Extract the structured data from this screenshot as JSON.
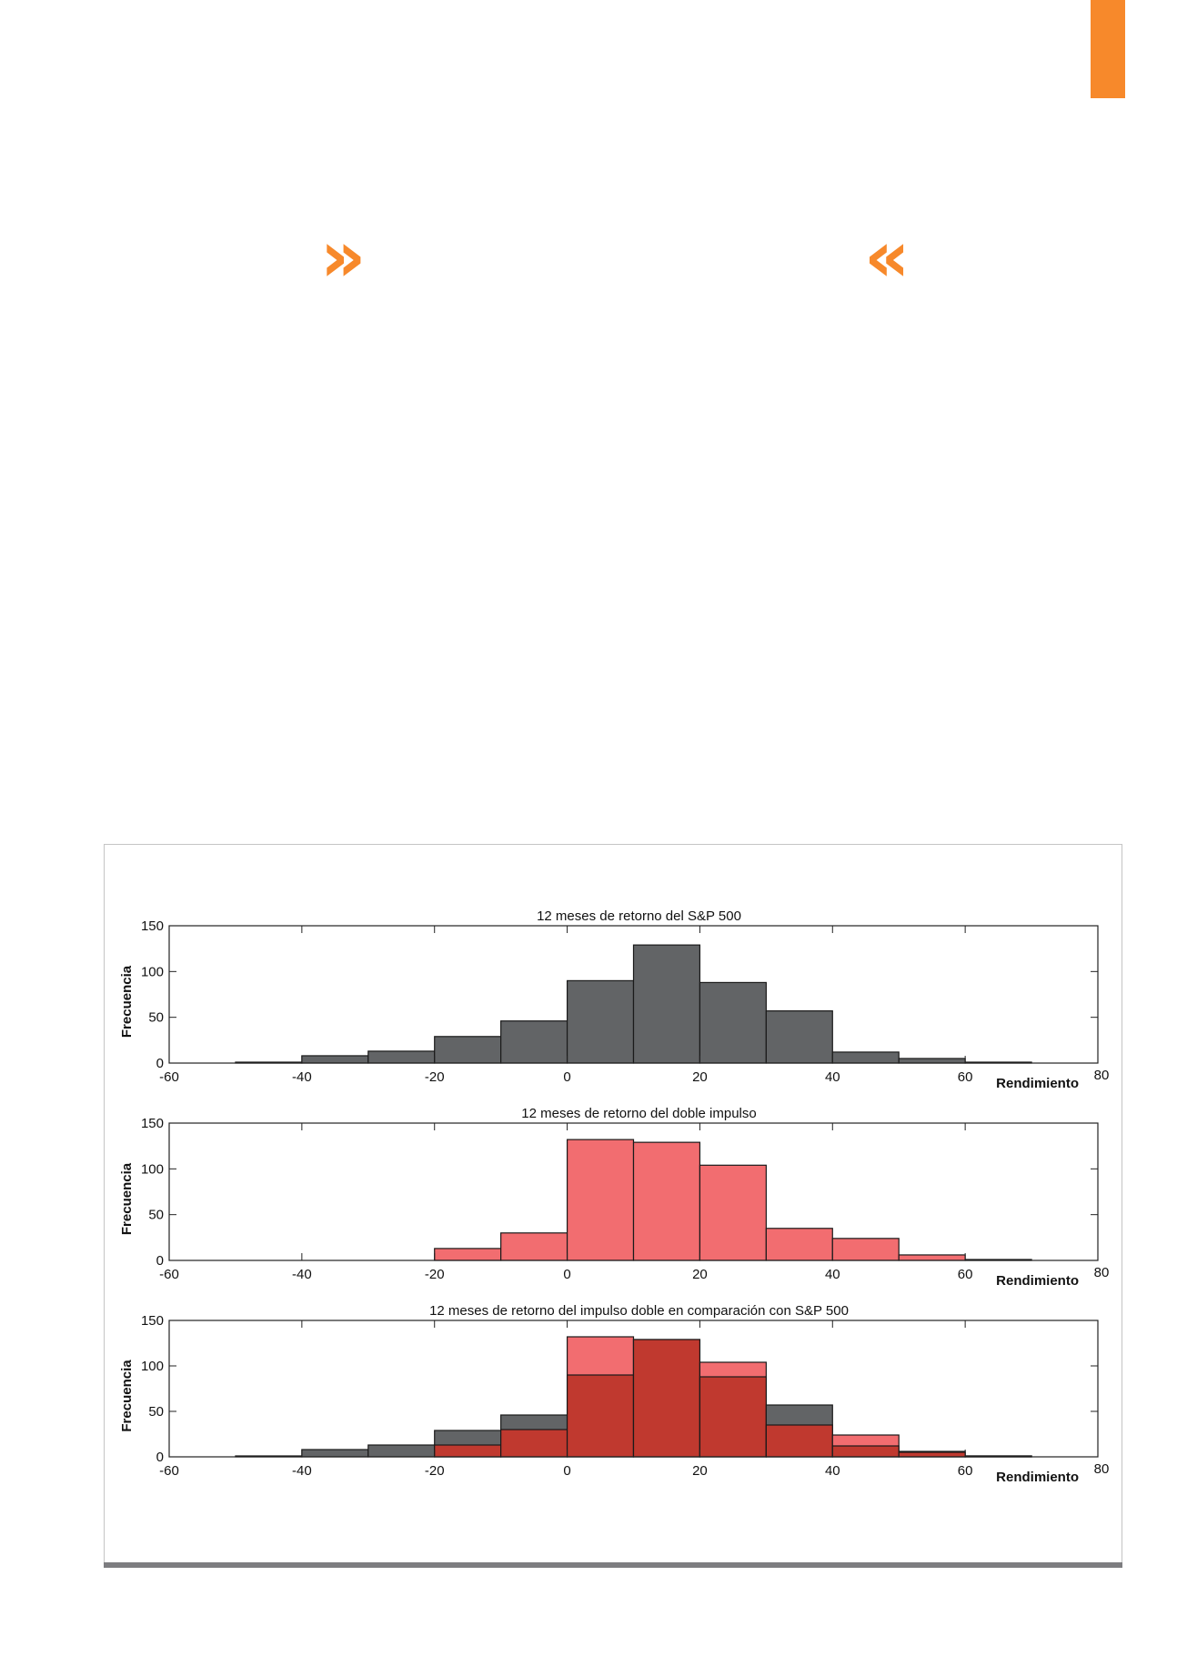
{
  "decor": {
    "accent_color": "#f7892b",
    "quote_open": "»",
    "quote_close": "«"
  },
  "colors": {
    "sp500": "#626466",
    "doble": "#f26d70",
    "overlap": "#c0392f",
    "edge": "#1a1a1a"
  },
  "chart_data": [
    {
      "type": "bar",
      "title": "12 meses de retorno del S&P 500",
      "xlabel": "Rendimiento",
      "ylabel": "Frecuencia",
      "xlim": [
        -60,
        80
      ],
      "ylim": [
        0,
        150
      ],
      "xticks": [
        "-60",
        "-40",
        "-20",
        "0",
        "20",
        "40",
        "60",
        "80"
      ],
      "yticks": [
        "0",
        "50",
        "100",
        "150"
      ],
      "bin_edges": [
        -50,
        -40,
        -30,
        -20,
        -10,
        0,
        10,
        20,
        30,
        40,
        50,
        60,
        70
      ],
      "series": [
        {
          "name": "S&P 500",
          "color_key": "sp500",
          "values": [
            1,
            8,
            13,
            29,
            46,
            90,
            129,
            88,
            57,
            12,
            5,
            1
          ]
        }
      ]
    },
    {
      "type": "bar",
      "title": "12 meses de retorno del doble impulso",
      "xlabel": "Rendimiento",
      "ylabel": "Frecuencia",
      "xlim": [
        -60,
        80
      ],
      "ylim": [
        0,
        150
      ],
      "xticks": [
        "-60",
        "-40",
        "-20",
        "0",
        "20",
        "40",
        "60",
        "80"
      ],
      "yticks": [
        "0",
        "50",
        "100",
        "150"
      ],
      "bin_edges": [
        -50,
        -40,
        -30,
        -20,
        -10,
        0,
        10,
        20,
        30,
        40,
        50,
        60,
        70
      ],
      "series": [
        {
          "name": "Doble impulso",
          "color_key": "doble",
          "values": [
            0,
            0,
            0,
            13,
            30,
            132,
            129,
            104,
            35,
            24,
            6,
            1
          ]
        }
      ]
    },
    {
      "type": "bar",
      "title": "12 meses de retorno del impulso doble en comparación con  S&P 500",
      "xlabel": "Rendimiento",
      "ylabel": "Frecuencia",
      "xlim": [
        -60,
        80
      ],
      "ylim": [
        0,
        150
      ],
      "xticks": [
        "-60",
        "-40",
        "-20",
        "0",
        "20",
        "40",
        "60",
        "80"
      ],
      "yticks": [
        "0",
        "50",
        "100",
        "150"
      ],
      "bin_edges": [
        -50,
        -40,
        -30,
        -20,
        -10,
        0,
        10,
        20,
        30,
        40,
        50,
        60,
        70
      ],
      "series": [
        {
          "name": "S&P 500",
          "color_key": "sp500",
          "values": [
            1,
            8,
            13,
            29,
            46,
            90,
            129,
            88,
            57,
            12,
            5,
            1
          ]
        },
        {
          "name": "Doble impulso",
          "color_key": "doble",
          "values": [
            0,
            0,
            0,
            13,
            30,
            132,
            129,
            104,
            35,
            24,
            6,
            1
          ]
        }
      ]
    }
  ]
}
